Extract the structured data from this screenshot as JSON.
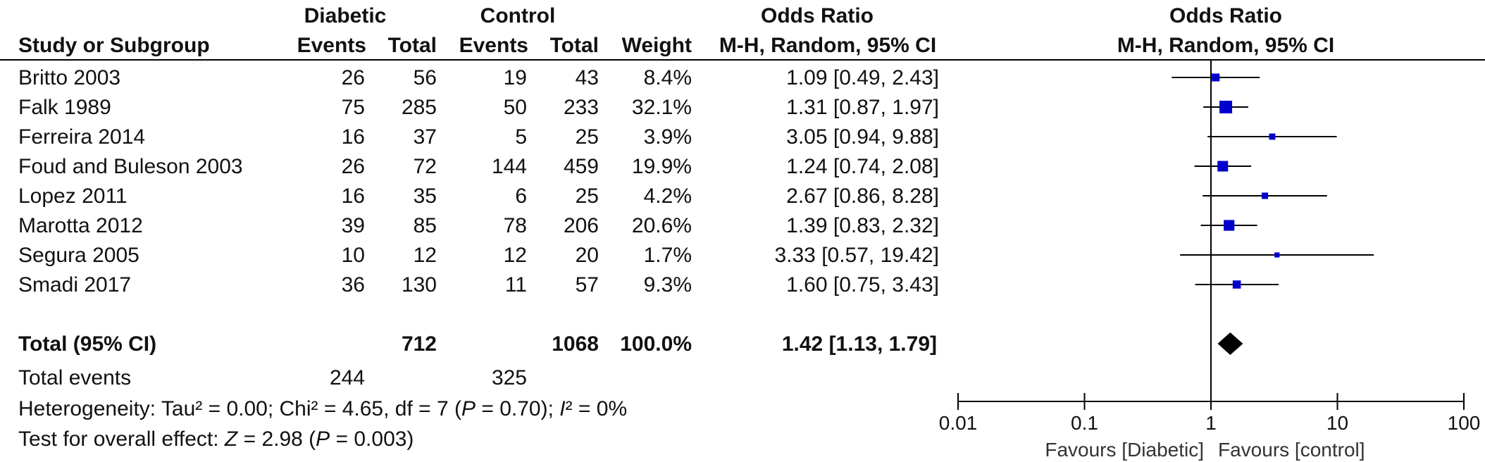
{
  "header": {
    "group1": "Diabetic",
    "group2": "Control",
    "or_top": "Odds Ratio",
    "or_top_plot": "Odds Ratio",
    "study_col": "Study or Subgroup",
    "events1": "Events",
    "total1": "Total",
    "events2": "Events",
    "total2": "Total",
    "weight": "Weight",
    "method": "M-H, Random, 95% CI",
    "method_plot": "M-H, Random, 95% CI"
  },
  "studies": [
    {
      "name": "Britto 2003",
      "e1": "26",
      "t1": "56",
      "e2": "19",
      "t2": "43",
      "weight": "8.4%",
      "ci_text": "1.09 [0.49, 2.43]"
    },
    {
      "name": "Falk 1989",
      "e1": "75",
      "t1": "285",
      "e2": "50",
      "t2": "233",
      "weight": "32.1%",
      "ci_text": "1.31 [0.87, 1.97]"
    },
    {
      "name": "Ferreira 2014",
      "e1": "16",
      "t1": "37",
      "e2": "5",
      "t2": "25",
      "weight": "3.9%",
      "ci_text": "3.05 [0.94, 9.88]"
    },
    {
      "name": "Foud and Buleson 2003",
      "e1": "26",
      "t1": "72",
      "e2": "144",
      "t2": "459",
      "weight": "19.9%",
      "ci_text": "1.24 [0.74, 2.08]"
    },
    {
      "name": "Lopez 2011",
      "e1": "16",
      "t1": "35",
      "e2": "6",
      "t2": "25",
      "weight": "4.2%",
      "ci_text": "2.67 [0.86, 8.28]"
    },
    {
      "name": "Marotta 2012",
      "e1": "39",
      "t1": "85",
      "e2": "78",
      "t2": "206",
      "weight": "20.6%",
      "ci_text": "1.39 [0.83, 2.32]"
    },
    {
      "name": "Segura 2005",
      "e1": "10",
      "t1": "12",
      "e2": "12",
      "t2": "20",
      "weight": "1.7%",
      "ci_text": "3.33 [0.57, 19.42]"
    },
    {
      "name": "Smadi 2017",
      "e1": "36",
      "t1": "130",
      "e2": "11",
      "t2": "57",
      "weight": "9.3%",
      "ci_text": "1.60 [0.75, 3.43]"
    }
  ],
  "total": {
    "label": "Total (95% CI)",
    "t1": "712",
    "t2": "1068",
    "weight": "100.0%",
    "ci_text": "1.42 [1.13, 1.79]"
  },
  "total_events": {
    "label": "Total events",
    "e1": "244",
    "e2": "325"
  },
  "heterogeneity": {
    "prefix": "Heterogeneity: Tau² = 0.00; Chi² = 4.65, df = 7 (",
    "p": "P",
    "mid": " = 0.70); ",
    "i": "I",
    "suffix": "² = 0%"
  },
  "overall": {
    "prefix": "Test for overall effect: ",
    "z": "Z",
    "mid": " = 2.98 (",
    "p": "P",
    "suffix": " = 0.003)"
  },
  "chart_data": {
    "type": "forest",
    "scale": "log",
    "xlim": [
      0.01,
      100
    ],
    "ticks": [
      0.01,
      0.1,
      1,
      10,
      100
    ],
    "tick_labels": [
      "0.01",
      "0.1",
      "1",
      "10",
      "100"
    ],
    "favours_left": "Favours [Diabetic]",
    "favours_right": "Favours [control]",
    "marker_color": "#0000cc",
    "summary_color": "#000000",
    "studies": [
      {
        "name": "Britto 2003",
        "or": 1.09,
        "lo": 0.49,
        "hi": 2.43,
        "weight": 8.4
      },
      {
        "name": "Falk 1989",
        "or": 1.31,
        "lo": 0.87,
        "hi": 1.97,
        "weight": 32.1
      },
      {
        "name": "Ferreira 2014",
        "or": 3.05,
        "lo": 0.94,
        "hi": 9.88,
        "weight": 3.9
      },
      {
        "name": "Foud and Buleson 2003",
        "or": 1.24,
        "lo": 0.74,
        "hi": 2.08,
        "weight": 19.9
      },
      {
        "name": "Lopez 2011",
        "or": 2.67,
        "lo": 0.86,
        "hi": 8.28,
        "weight": 4.2
      },
      {
        "name": "Marotta 2012",
        "or": 1.39,
        "lo": 0.83,
        "hi": 2.32,
        "weight": 20.6
      },
      {
        "name": "Segura 2005",
        "or": 3.33,
        "lo": 0.57,
        "hi": 19.42,
        "weight": 1.7
      },
      {
        "name": "Smadi 2017",
        "or": 1.6,
        "lo": 0.75,
        "hi": 3.43,
        "weight": 9.3
      }
    ],
    "summary": {
      "or": 1.42,
      "lo": 1.13,
      "hi": 1.79
    }
  }
}
